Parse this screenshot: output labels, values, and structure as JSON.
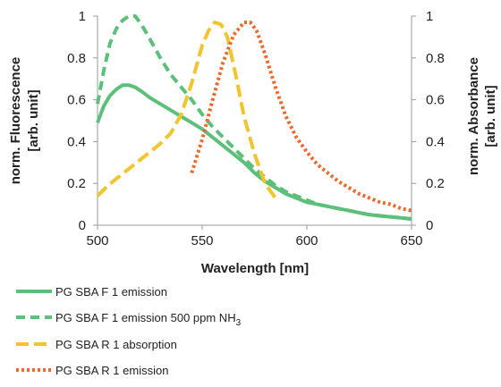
{
  "chart_data": {
    "type": "line",
    "xlabel": "Wavelength [nm]",
    "ylabel_left": [
      "norm. Fluorescence",
      "[arb. unit]"
    ],
    "ylabel_right": [
      "norm. Absorbance",
      "[arb. unit]"
    ],
    "xlim": [
      500,
      650
    ],
    "ylim": [
      0,
      1
    ],
    "y2lim": [
      0,
      1
    ],
    "x_ticks": [
      500,
      550,
      600,
      650
    ],
    "y_ticks": [
      0,
      0.2,
      0.4,
      0.6,
      0.8,
      1
    ],
    "x_tick_labels": [
      "500",
      "550",
      "600",
      "650"
    ],
    "y_tick_labels": [
      "0",
      "0.2",
      "0.4",
      "0.6",
      "0.8",
      "1"
    ],
    "y2_ticks": [
      0,
      0.2,
      0.4,
      0.6,
      0.8,
      1
    ],
    "y2_tick_labels": [
      "0",
      "0.2",
      "0.4",
      "0.6",
      "0.8",
      "1"
    ],
    "grid": false,
    "legend_position": "bottom",
    "series": [
      {
        "name": "PG SBA F 1 emission",
        "legend_main": "PG SBA F 1 emission",
        "legend_sub": "",
        "color": "#5cbf7a",
        "dash": "solid",
        "axis": "left",
        "x": [
          500,
          503,
          506,
          509,
          512,
          515,
          518,
          521,
          525,
          530,
          535,
          540,
          545,
          550,
          555,
          560,
          565,
          570,
          575,
          580,
          585,
          590,
          595,
          600,
          605,
          610,
          615,
          620,
          625,
          630,
          635,
          640,
          645,
          650
        ],
        "y": [
          0.49,
          0.57,
          0.62,
          0.65,
          0.67,
          0.67,
          0.66,
          0.64,
          0.61,
          0.58,
          0.55,
          0.52,
          0.49,
          0.46,
          0.42,
          0.38,
          0.34,
          0.3,
          0.25,
          0.21,
          0.18,
          0.15,
          0.13,
          0.11,
          0.1,
          0.09,
          0.08,
          0.07,
          0.06,
          0.05,
          0.045,
          0.04,
          0.035,
          0.03
        ]
      },
      {
        "name": "PG SBA F 1 emission 500 ppm NH3",
        "legend_main": "PG SBA F 1 emission 500 ppm NH",
        "legend_sub": "3",
        "color": "#5cbf7a",
        "dash": "10,6",
        "axis": "left",
        "x": [
          500,
          503,
          506,
          509,
          512,
          515,
          518,
          521,
          525,
          530,
          535,
          540,
          545,
          550,
          555,
          560,
          565,
          570,
          575,
          580,
          585,
          590,
          595,
          600,
          605,
          610,
          615,
          620,
          625,
          630,
          635,
          640,
          645,
          650
        ],
        "y": [
          0.58,
          0.74,
          0.87,
          0.94,
          0.98,
          1.0,
          1.0,
          0.96,
          0.89,
          0.8,
          0.72,
          0.66,
          0.6,
          0.53,
          0.47,
          0.42,
          0.37,
          0.32,
          0.27,
          0.23,
          0.19,
          0.16,
          0.14,
          0.12,
          0.1,
          0.09,
          0.08,
          0.07,
          0.06,
          0.05,
          0.045,
          0.04,
          0.035,
          0.03
        ]
      },
      {
        "name": "PG SBA R 1 absorption",
        "legend_main": "PG SBA R 1 absorption",
        "legend_sub": "",
        "color": "#f2c42e",
        "dash": "14,6",
        "axis": "right",
        "x": [
          500,
          505,
          510,
          515,
          520,
          525,
          530,
          535,
          540,
          545,
          550,
          553,
          556,
          559,
          562,
          566,
          570,
          575,
          580,
          585
        ],
        "y": [
          0.14,
          0.19,
          0.23,
          0.27,
          0.31,
          0.35,
          0.39,
          0.44,
          0.53,
          0.68,
          0.86,
          0.93,
          0.97,
          0.96,
          0.9,
          0.72,
          0.52,
          0.34,
          0.2,
          0.13
        ]
      },
      {
        "name": "PG SBA R 1 emission",
        "legend_main": "PG SBA R 1 emission",
        "legend_sub": "",
        "color": "#ec6a2c",
        "dash": "3,3",
        "axis": "right",
        "x": [
          545,
          550,
          555,
          560,
          565,
          570,
          573,
          576,
          580,
          585,
          590,
          595,
          600,
          605,
          610,
          615,
          620,
          625,
          630,
          635,
          640,
          645,
          650
        ],
        "y": [
          0.25,
          0.41,
          0.6,
          0.78,
          0.91,
          0.97,
          0.97,
          0.93,
          0.82,
          0.66,
          0.52,
          0.42,
          0.35,
          0.29,
          0.25,
          0.21,
          0.18,
          0.15,
          0.13,
          0.11,
          0.1,
          0.08,
          0.07
        ]
      }
    ]
  }
}
